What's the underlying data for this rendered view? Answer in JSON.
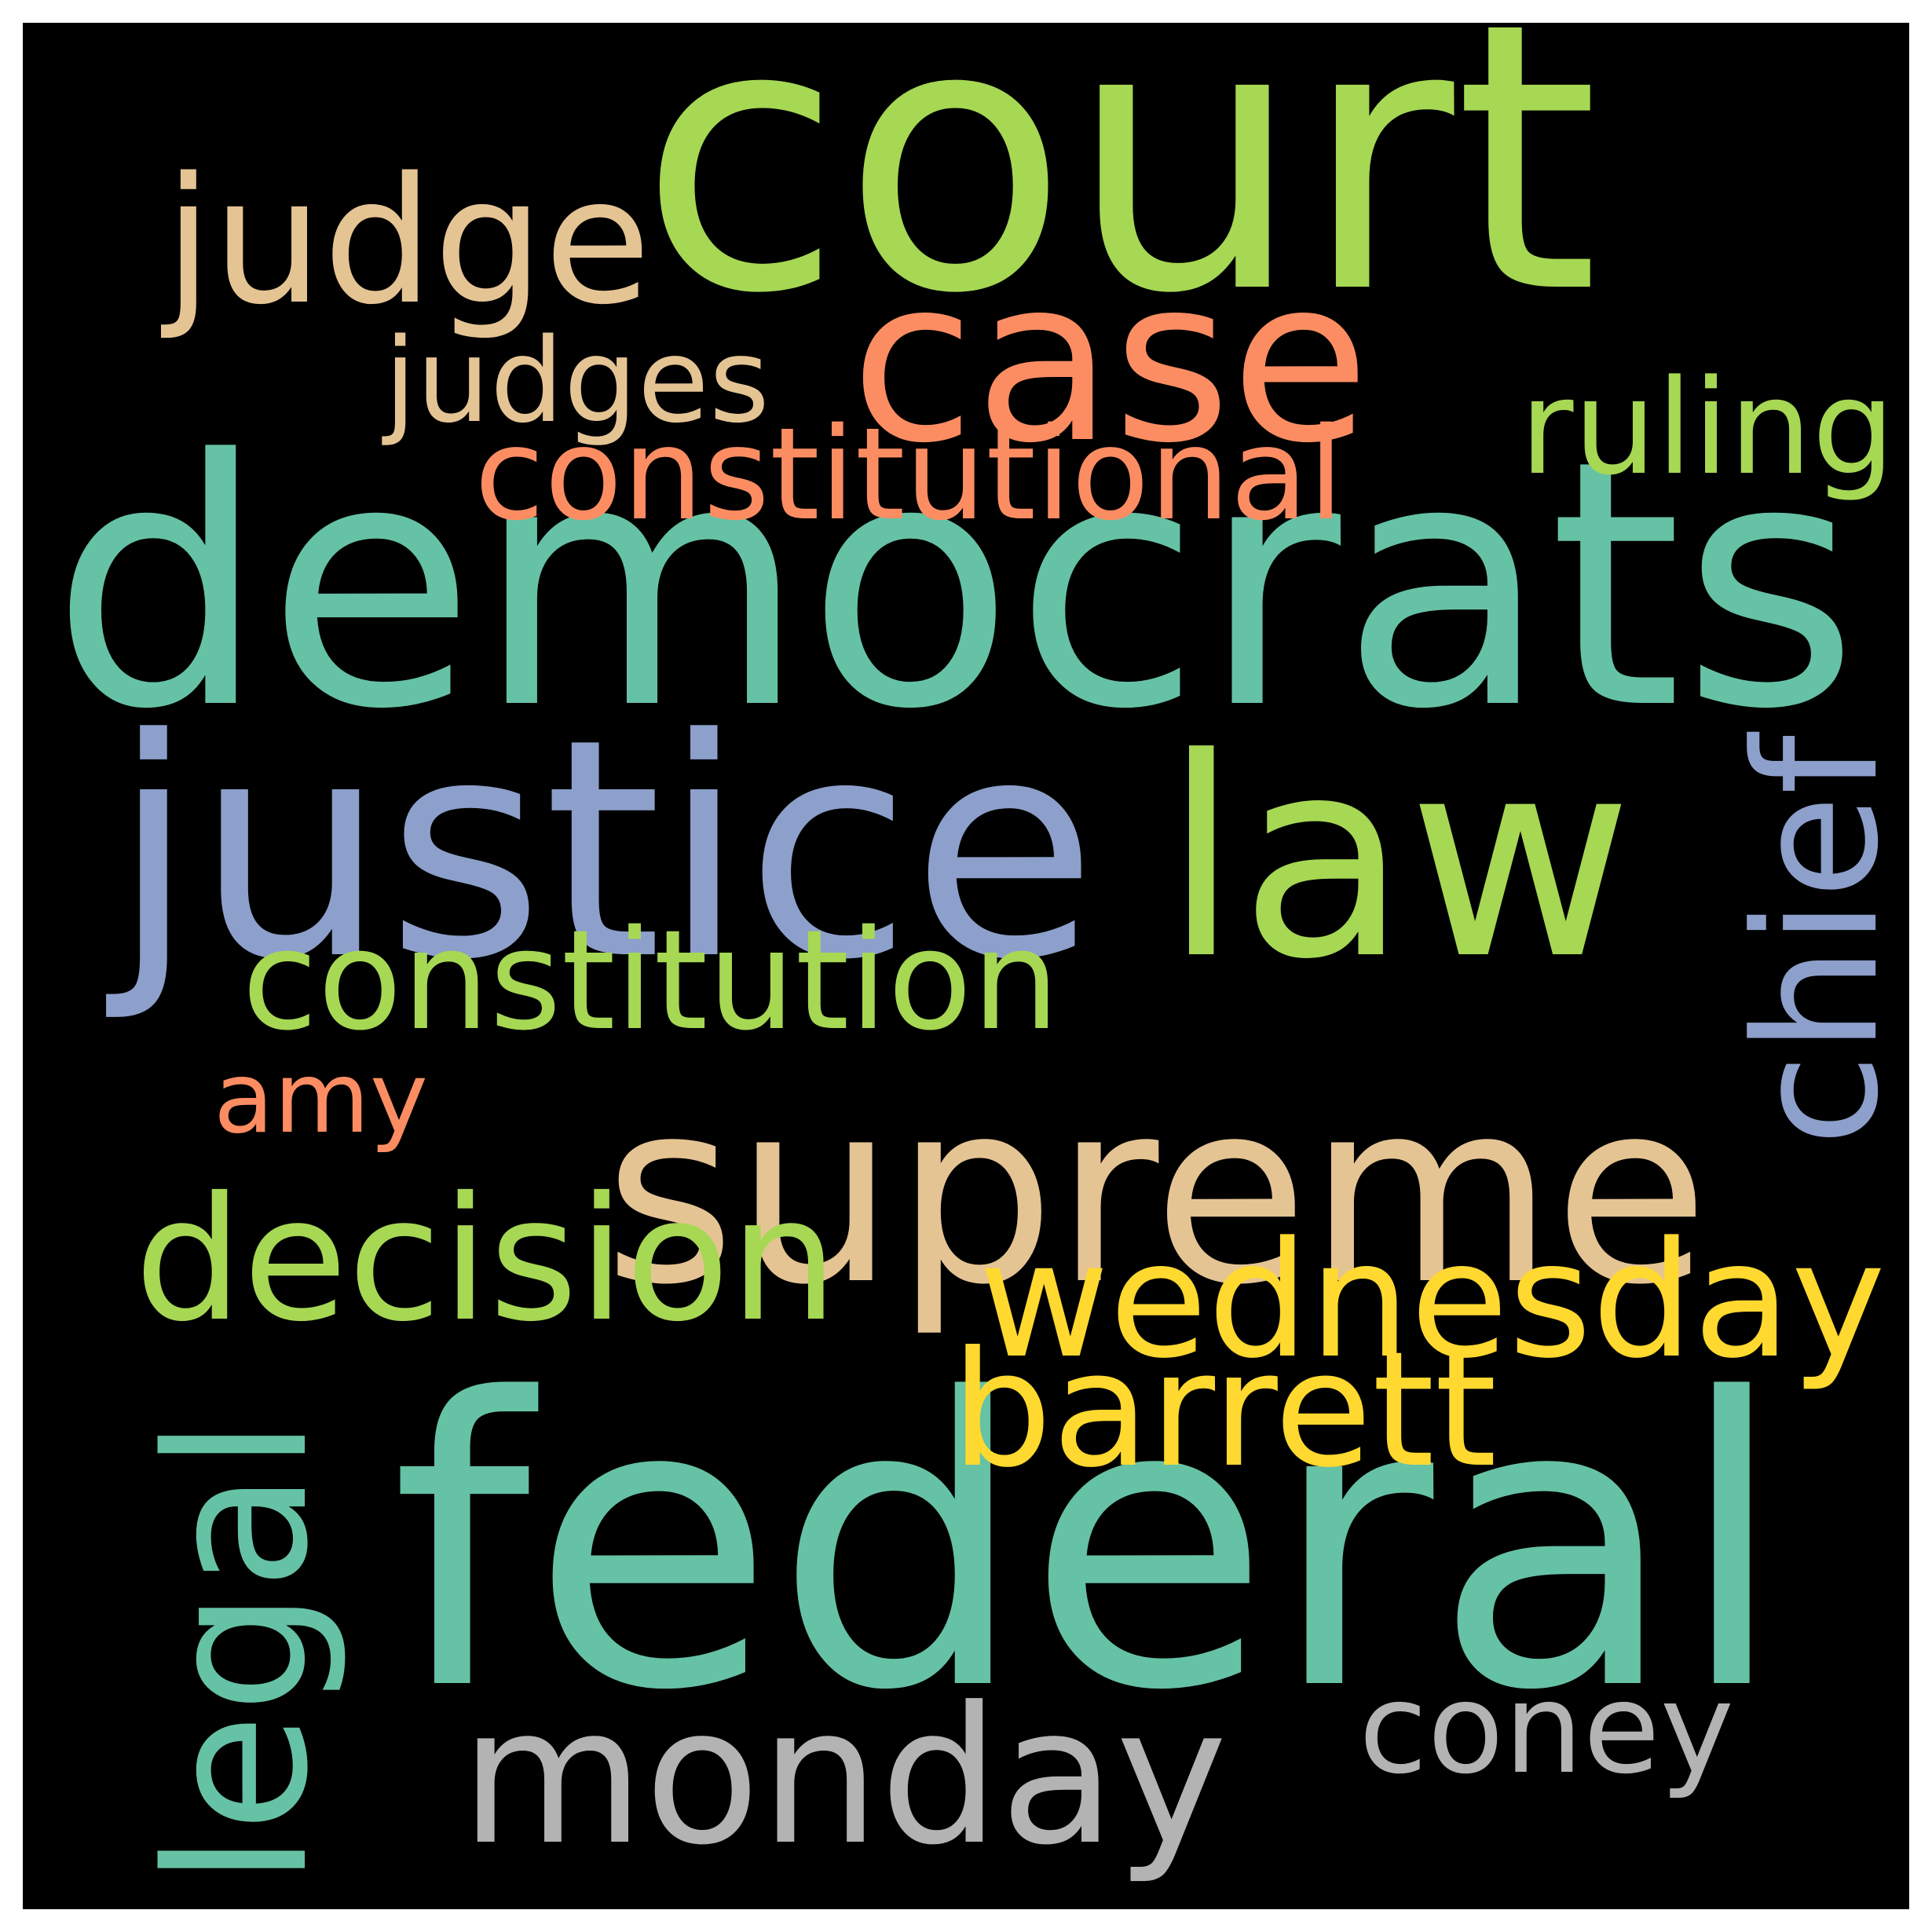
{
  "palette": {
    "teal": "#66c2a5",
    "orange": "#fc8d62",
    "blue": "#8da0cb",
    "green": "#a6d854",
    "yellow": "#ffd92f",
    "tan": "#e5c494",
    "gray": "#b3b3b3",
    "background": "#000000"
  },
  "words": [
    {
      "id": "democrats",
      "text": "democrats",
      "color": "#66c2a5",
      "orientation": "horizontal"
    },
    {
      "id": "federal",
      "text": "federal",
      "color": "#66c2a5",
      "orientation": "horizontal"
    },
    {
      "id": "court",
      "text": "court",
      "color": "#a6d854",
      "orientation": "horizontal"
    },
    {
      "id": "supreme",
      "text": "supreme",
      "color": "#e5c494",
      "orientation": "horizontal"
    },
    {
      "id": "justice",
      "text": "justice",
      "color": "#8da0cb",
      "orientation": "horizontal"
    },
    {
      "id": "law",
      "text": "law",
      "color": "#a6d854",
      "orientation": "horizontal"
    },
    {
      "id": "case",
      "text": "case",
      "color": "#fc8d62",
      "orientation": "horizontal"
    },
    {
      "id": "monday",
      "text": "monday",
      "color": "#b3b3b3",
      "orientation": "horizontal"
    },
    {
      "id": "wednesday",
      "text": "wednesday",
      "color": "#ffd92f",
      "orientation": "horizontal"
    },
    {
      "id": "decision",
      "text": "decision",
      "color": "#a6d854",
      "orientation": "horizontal"
    },
    {
      "id": "judge",
      "text": "judge",
      "color": "#e5c494",
      "orientation": "horizontal"
    },
    {
      "id": "constitution",
      "text": "constitution",
      "color": "#a6d854",
      "orientation": "horizontal"
    },
    {
      "id": "barrett",
      "text": "barrett",
      "color": "#ffd92f",
      "orientation": "horizontal"
    },
    {
      "id": "legal",
      "text": "legal",
      "color": "#66c2a5",
      "orientation": "vertical"
    },
    {
      "id": "constitutional",
      "text": "constitutional",
      "color": "#fc8d62",
      "orientation": "horizontal"
    },
    {
      "id": "judges",
      "text": "judges",
      "color": "#e5c494",
      "orientation": "horizontal"
    },
    {
      "id": "chief",
      "text": "chief",
      "color": "#8da0cb",
      "orientation": "vertical"
    },
    {
      "id": "amy",
      "text": "amy",
      "color": "#fc8d62",
      "orientation": "horizontal"
    },
    {
      "id": "coney",
      "text": "coney",
      "color": "#b3b3b3",
      "orientation": "horizontal"
    },
    {
      "id": "ruling",
      "text": "ruling",
      "color": "#a6d854",
      "orientation": "horizontal"
    }
  ]
}
